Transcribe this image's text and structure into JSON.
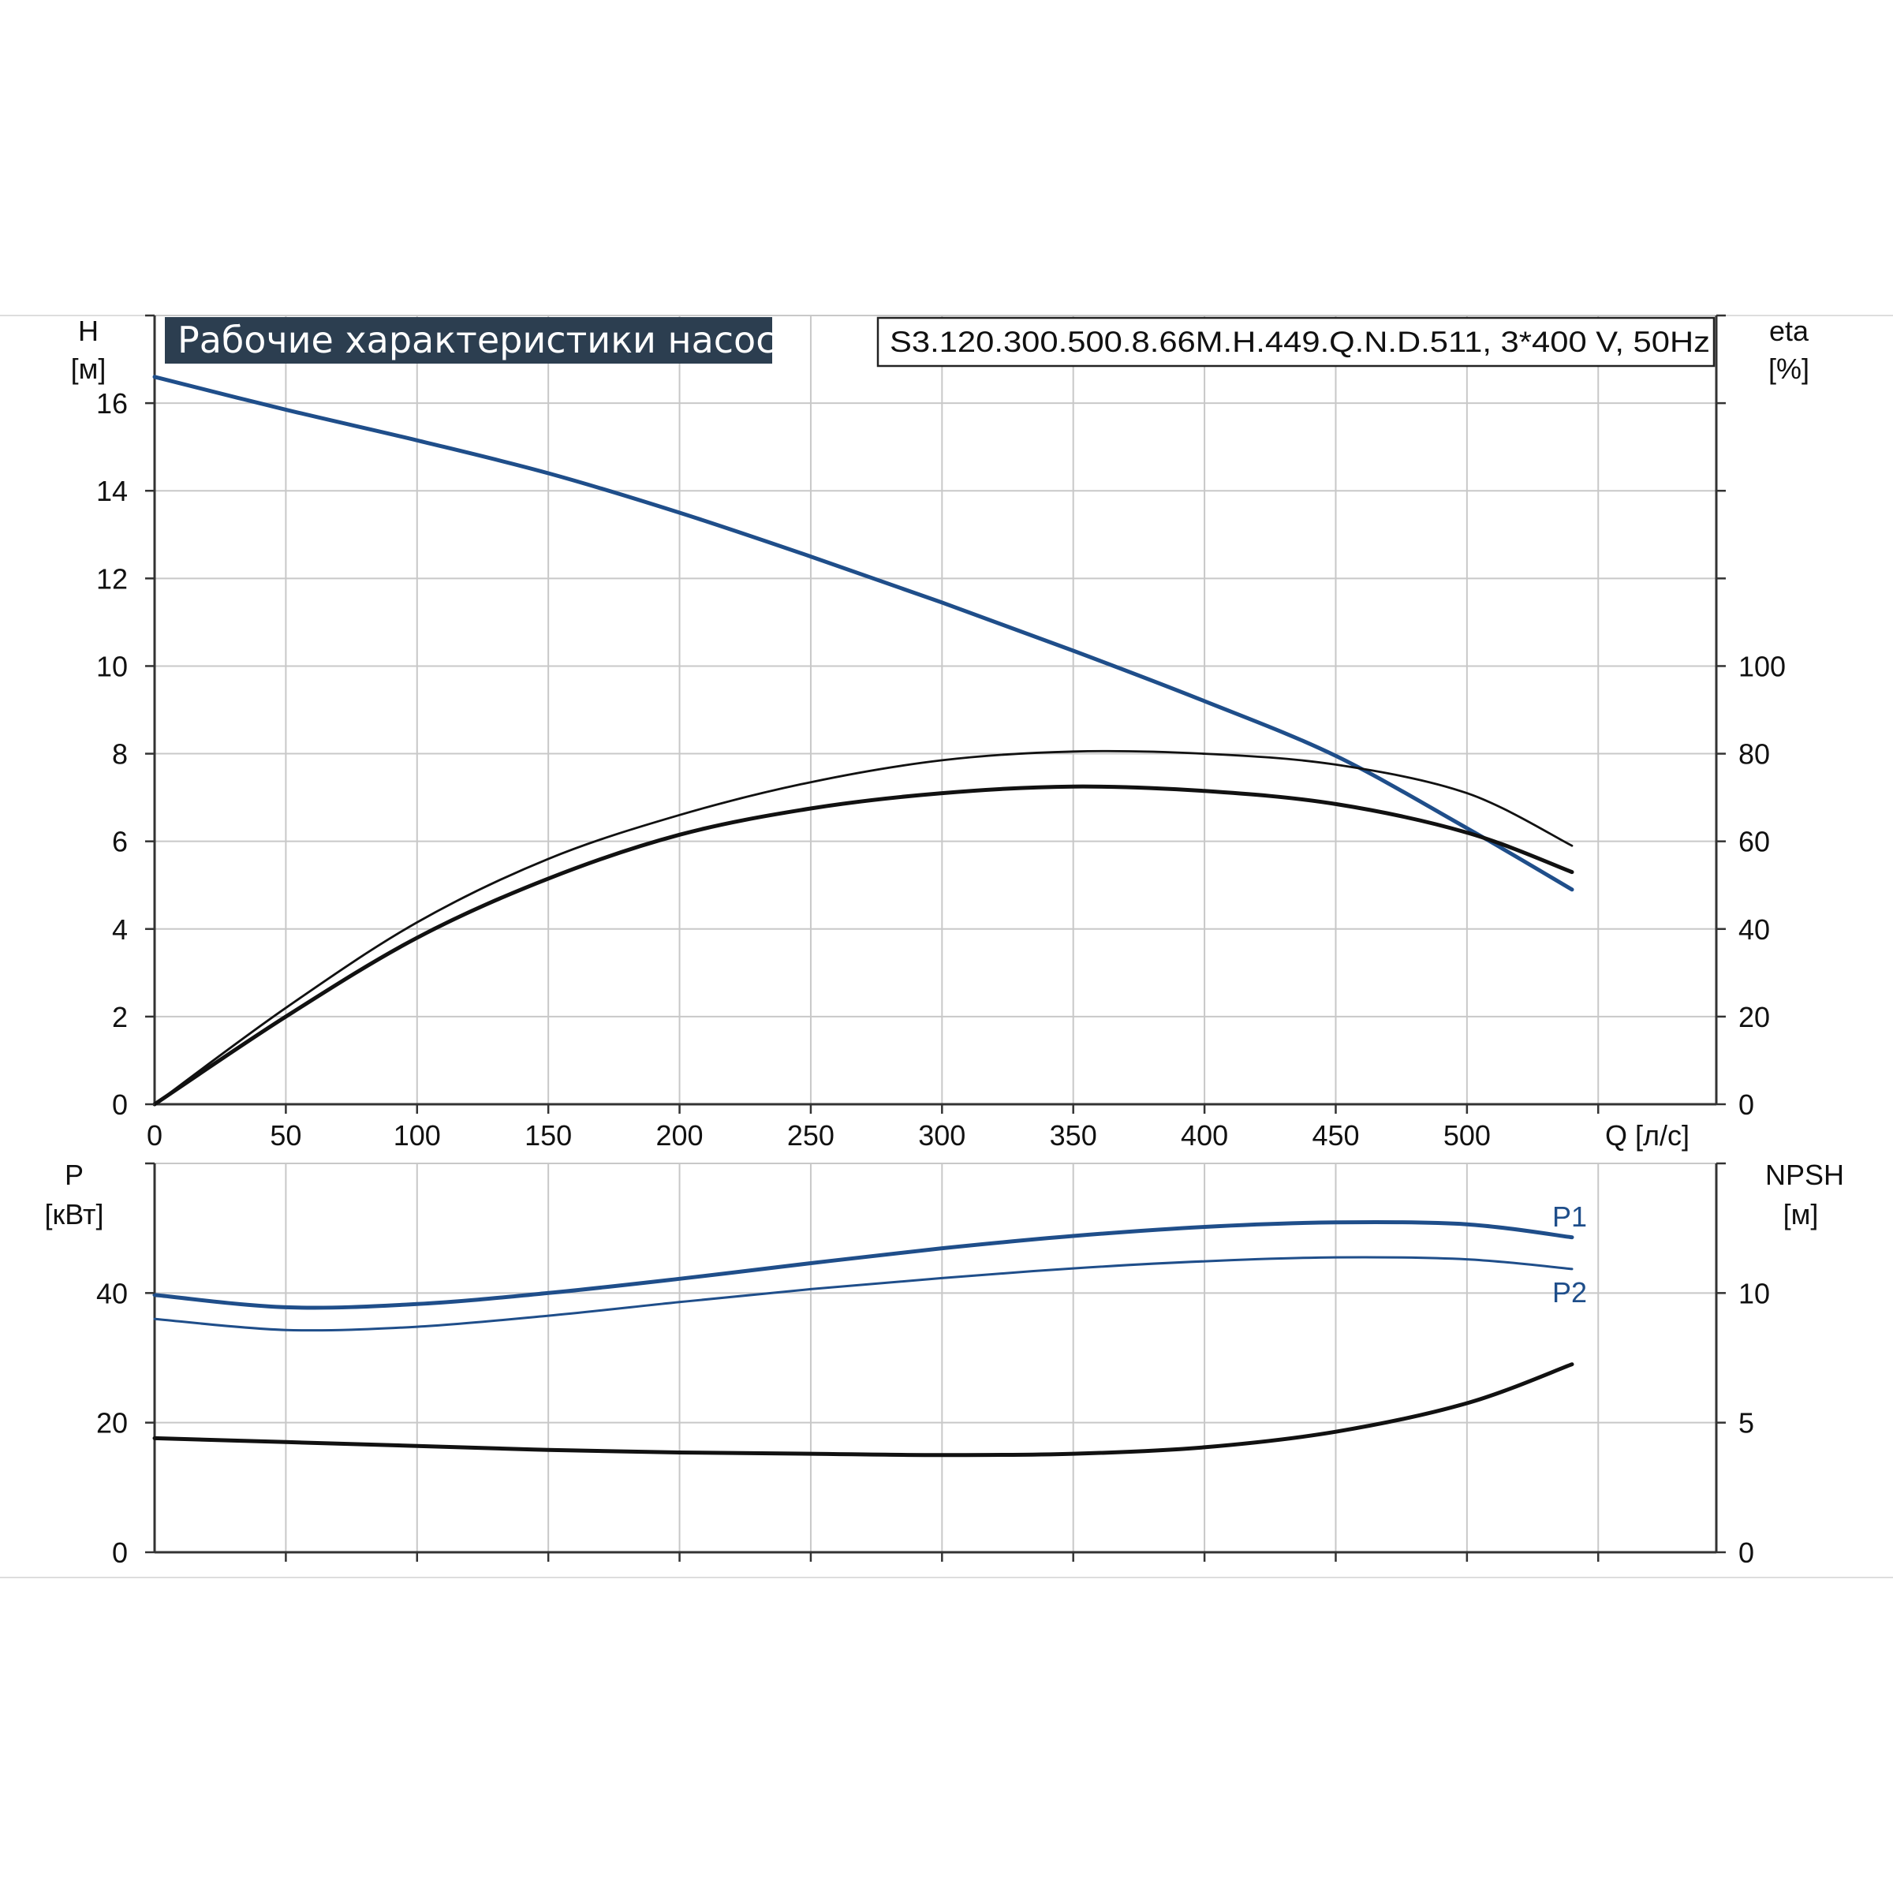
{
  "chart_data": [
    {
      "type": "line",
      "title": "Рабочие характеристики насоса",
      "model": "S3.120.300.500.8.66M.H.449.Q.N.D.511, 3*400 V, 50Hz",
      "xlabel": "Q [л/с]",
      "ylabel": "H",
      "ylabel_unit": "[м]",
      "y2label": "eta",
      "y2label_unit": "[%]",
      "xlim": [
        0,
        595
      ],
      "ylim": [
        0,
        18
      ],
      "y2lim": [
        0,
        180
      ],
      "x_ticks": [
        0,
        50,
        100,
        150,
        200,
        250,
        300,
        350,
        400,
        450,
        500
      ],
      "y_ticks": [
        0,
        2,
        4,
        6,
        8,
        10,
        12,
        14,
        16
      ],
      "y2_ticks": [
        0,
        20,
        40,
        60,
        80,
        100
      ],
      "grid": true,
      "series": [
        {
          "axis": "left",
          "color": "#1f4e8a",
          "x": [
            0,
            50,
            100,
            150,
            200,
            250,
            300,
            350,
            400,
            450,
            500,
            540
          ],
          "y": [
            16.6,
            15.85,
            15.15,
            14.4,
            13.5,
            12.5,
            11.45,
            10.35,
            9.2,
            7.95,
            6.3,
            4.9
          ]
        },
        {
          "axis": "right",
          "color": "#111111",
          "x": [
            0,
            50,
            100,
            150,
            200,
            250,
            300,
            350,
            400,
            450,
            500,
            540
          ],
          "y": [
            0,
            22,
            41.5,
            56,
            66,
            73.5,
            78.5,
            80.5,
            80,
            77.5,
            71,
            59
          ]
        },
        {
          "axis": "right",
          "color": "#111111",
          "x": [
            0,
            50,
            100,
            150,
            200,
            250,
            300,
            350,
            400,
            450,
            500,
            540
          ],
          "y": [
            0,
            20,
            38,
            51.5,
            61.5,
            67.5,
            71,
            72.5,
            71.5,
            68.5,
            62,
            53
          ]
        }
      ]
    },
    {
      "type": "line",
      "ylabel": "P",
      "ylabel_unit": "[кВт]",
      "y2label": "NPSH",
      "y2label_unit": "[м]",
      "xlim": [
        0,
        595
      ],
      "ylim": [
        0,
        60
      ],
      "y2lim": [
        0,
        15
      ],
      "y_ticks": [
        0,
        20,
        40
      ],
      "y2_ticks": [
        0,
        5,
        10
      ],
      "grid": true,
      "series": [
        {
          "name": "P1",
          "axis": "left",
          "color": "#1f4e8a",
          "x": [
            0,
            50,
            100,
            150,
            200,
            250,
            300,
            350,
            400,
            450,
            500,
            540
          ],
          "y": [
            39.7,
            37.8,
            38.3,
            40,
            42.2,
            44.6,
            46.9,
            48.8,
            50.2,
            50.9,
            50.6,
            48.6
          ]
        },
        {
          "name": "P2",
          "axis": "left",
          "color": "#1f4e8a",
          "x": [
            0,
            50,
            100,
            150,
            200,
            250,
            300,
            350,
            400,
            450,
            500,
            540
          ],
          "y": [
            36,
            34.3,
            34.8,
            36.5,
            38.6,
            40.6,
            42.3,
            43.8,
            44.9,
            45.5,
            45.2,
            43.7
          ]
        },
        {
          "axis": "right",
          "color": "#111111",
          "x": [
            0,
            50,
            100,
            150,
            200,
            250,
            300,
            350,
            400,
            450,
            500,
            540
          ],
          "y": [
            4.4,
            4.25,
            4.1,
            3.95,
            3.85,
            3.8,
            3.75,
            3.8,
            4.05,
            4.65,
            5.75,
            7.25
          ]
        }
      ]
    }
  ]
}
